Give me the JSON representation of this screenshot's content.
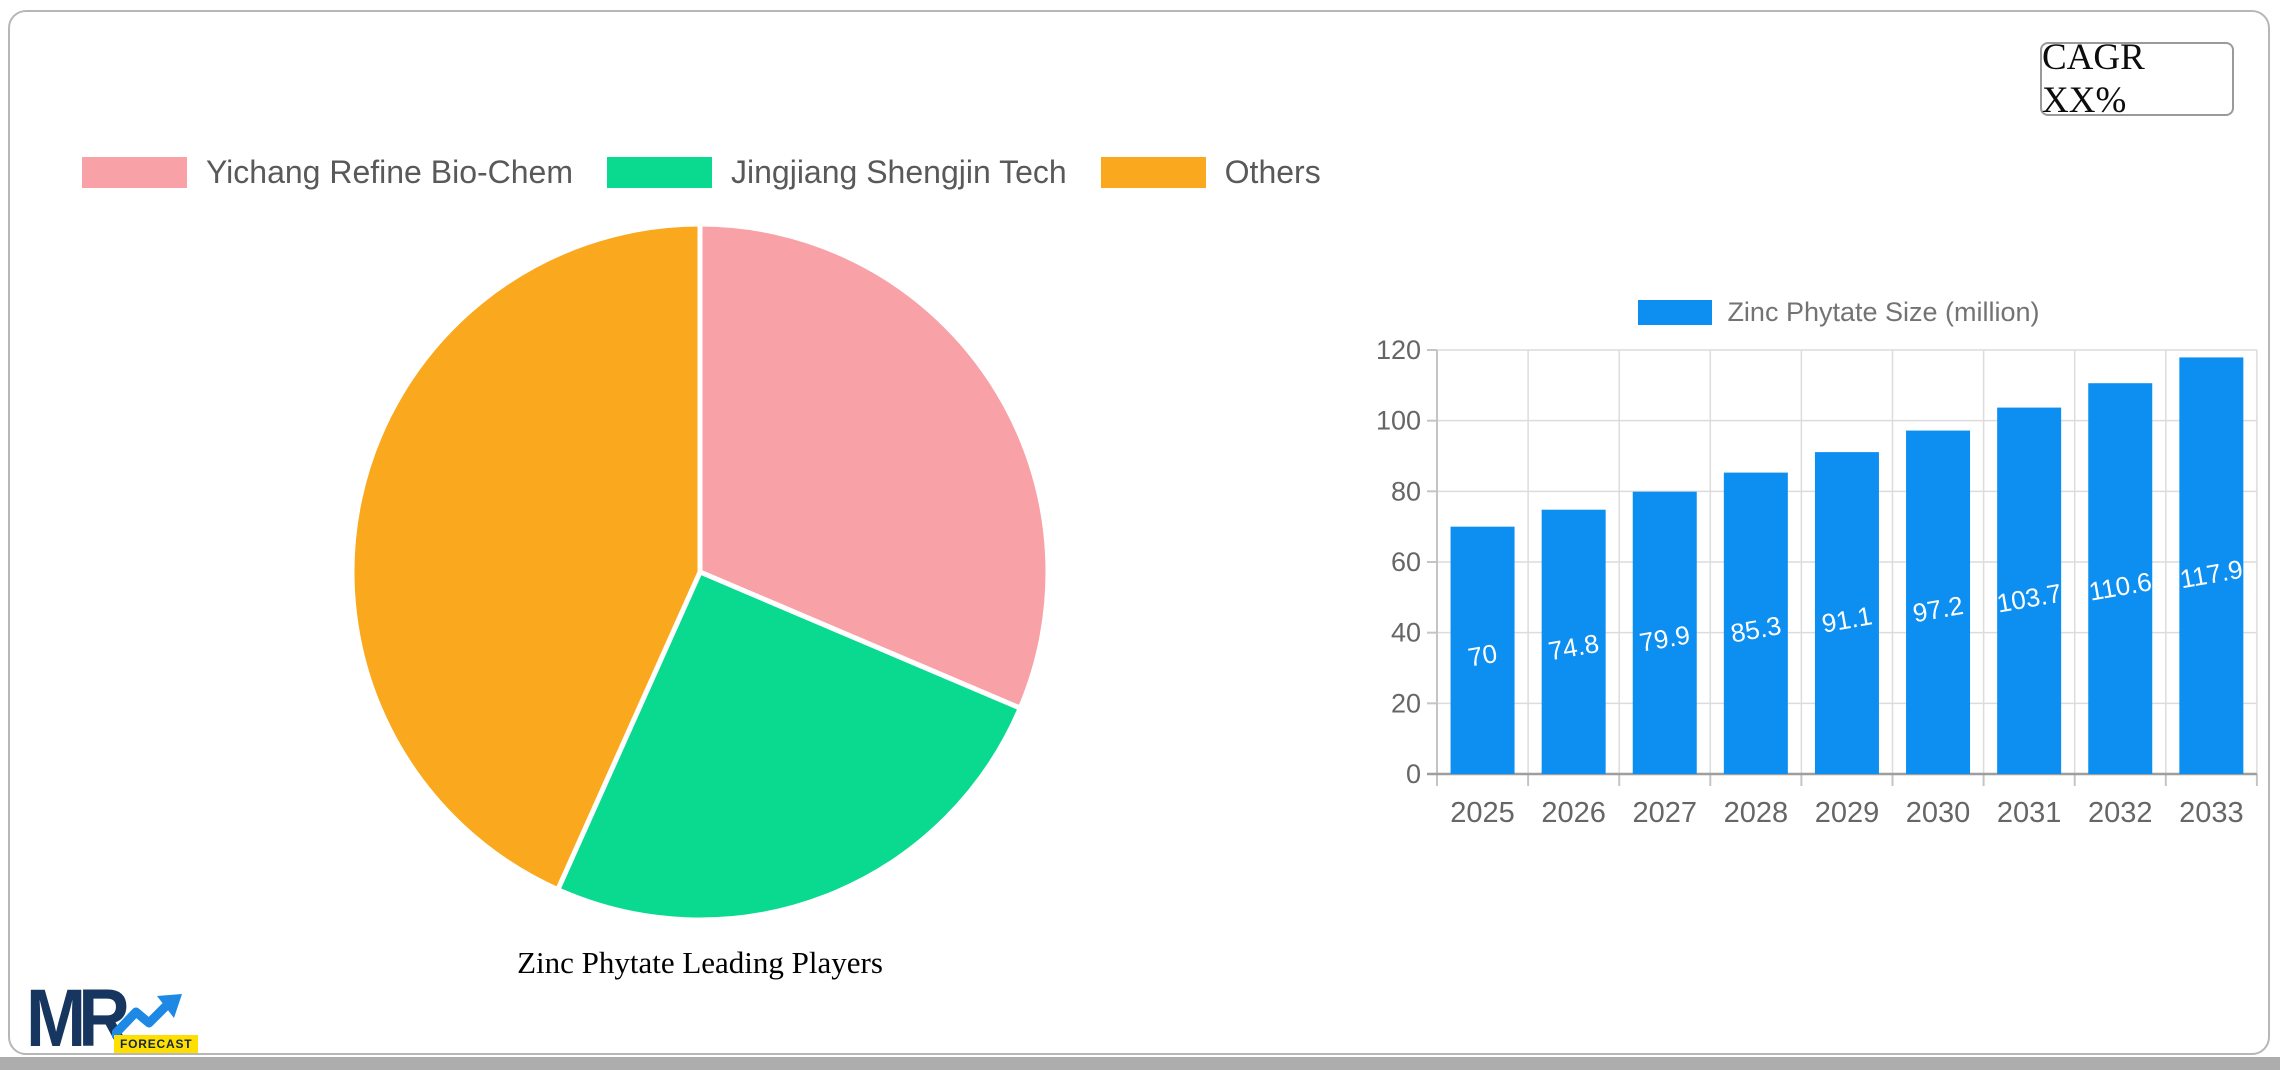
{
  "cagr": {
    "label": "CAGR XX%"
  },
  "logo": {
    "mr": "MR",
    "forecast": "FORECAST"
  },
  "colors": {
    "pink": "#f8a1a7",
    "green": "#0ada8f",
    "orange": "#faa91e",
    "blue": "#0d8ff2",
    "axis_text": "#666666",
    "grid": "#dcdcdc",
    "axis_line": "#9e9e9e"
  },
  "chart_data": [
    {
      "type": "pie",
      "title": "Zinc Phytate Leading Players",
      "legend_position": "top-left",
      "direction": "clockwise",
      "start_angle_deg": 0,
      "slices": [
        {
          "label": "Yichang Refine Bio-Chem",
          "value_pct": 31.4,
          "color": "#f8a1a7"
        },
        {
          "label": "Jingjiang Shengjin Tech",
          "value_pct": 25.3,
          "color": "#0ada8f"
        },
        {
          "label": "Others",
          "value_pct": 43.3,
          "color": "#faa91e"
        }
      ]
    },
    {
      "type": "bar",
      "legend": "Zinc Phytate Size (million)",
      "legend_position": "top-center",
      "categories": [
        "2025",
        "2026",
        "2027",
        "2028",
        "2029",
        "2030",
        "2031",
        "2032",
        "2033"
      ],
      "values": [
        70,
        74.8,
        79.9,
        85.3,
        91.1,
        97.2,
        103.7,
        110.6,
        117.9
      ],
      "value_labels": [
        "70",
        "74.8",
        "79.9",
        "85.3",
        "91.1",
        "97.2",
        "103.7",
        "110.6",
        "117.9"
      ],
      "ylim": [
        0,
        120
      ],
      "ytick_step": 20,
      "yticks": [
        0,
        20,
        40,
        60,
        80,
        100,
        120
      ],
      "grid": true,
      "bar_color": "#0d8ff2",
      "value_label_color": "#ffffff"
    }
  ]
}
